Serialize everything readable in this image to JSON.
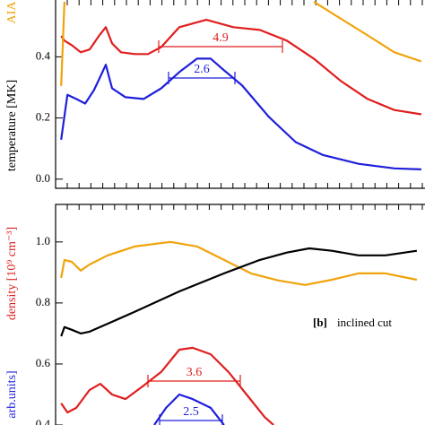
{
  "chart_data": [
    {
      "type": "line",
      "ylabel": "temperature [MK]",
      "y2label": "AIA",
      "y2label_color": "#f0a30a",
      "xlim": [
        0,
        100
      ],
      "ylim": [
        -0.03,
        0.58
      ],
      "yticks": [
        {
          "value": 0,
          "label": "0.0"
        },
        0.2,
        0.4
      ],
      "series": [
        {
          "name": "red",
          "color": "#e01e1e",
          "x": [
            1.5,
            2.4,
            4.4,
            6.8,
            9.2,
            11.7,
            13.6,
            15.3,
            17.7,
            21.4,
            25,
            28.6,
            33.5,
            40.8,
            48.1,
            55.3,
            62.6,
            69.9,
            77.2,
            84.5,
            91.7,
            99
          ],
          "values": [
            0.468,
            0.453,
            0.438,
            0.415,
            0.424,
            0.468,
            0.497,
            0.444,
            0.415,
            0.409,
            0.409,
            0.432,
            0.497,
            0.521,
            0.497,
            0.488,
            0.453,
            0.394,
            0.321,
            0.262,
            0.226,
            0.212
          ]
        },
        {
          "name": "blue",
          "color": "#1f1fdc",
          "x": [
            1.5,
            3.2,
            5.6,
            8,
            10.4,
            12.1,
            13.6,
            15.3,
            18.9,
            23.8,
            28.6,
            33.5,
            38.3,
            42,
            45.6,
            50.5,
            57.8,
            65,
            72.3,
            82,
            91.7,
            99
          ],
          "values": [
            0.129,
            0.276,
            0.262,
            0.247,
            0.291,
            0.335,
            0.374,
            0.297,
            0.268,
            0.262,
            0.297,
            0.35,
            0.394,
            0.394,
            0.356,
            0.306,
            0.203,
            0.121,
            0.079,
            0.05,
            0.035,
            0.032
          ]
        },
        {
          "name": "orange",
          "color": "#f0a30a",
          "x": [
            1.5,
            2.4,
            3.4,
            69.9,
            77.2,
            84.5,
            91.7,
            99
          ],
          "values": [
            0.305,
            0.58,
            null,
            0.58,
            0.525,
            0.47,
            0.415,
            0.385
          ]
        }
      ],
      "annotations": [
        {
          "text": "4.9",
          "color": "#e01e1e"
        },
        {
          "text": "2.6",
          "color": "#1f1fdc"
        }
      ]
    },
    {
      "type": "line",
      "ylabel": "density [10⁹ cm⁻³]",
      "ylabel_color": "#e01e1e",
      "y2label": "arb.units]",
      "y2label_color": "#1f1fdc",
      "panel_label": "[b]",
      "subtitle": "inclined cut",
      "xlim": [
        0,
        100
      ],
      "ylim": [
        0.4,
        1.12
      ],
      "yticks": [
        {
          "value": 1,
          "label": "1.0"
        },
        0.8,
        0.6,
        0.4
      ],
      "series": [
        {
          "name": "orange",
          "color": "#f0a30a",
          "x": [
            1.5,
            2.4,
            4.4,
            6.8,
            9.2,
            14.1,
            21.4,
            31.1,
            38.3,
            45.6,
            52.9,
            60.2,
            67.5,
            74.8,
            82,
            89.3,
            97.8
          ],
          "values": [
            0.882,
            0.941,
            0.935,
            0.906,
            0.926,
            0.956,
            0.985,
            1.0,
            0.985,
            0.941,
            0.897,
            0.874,
            0.859,
            0.876,
            0.897,
            0.897,
            0.876
          ]
        },
        {
          "name": "black",
          "color": "#000000",
          "x": [
            1.5,
            2.4,
            4.4,
            6.8,
            9.2,
            21.4,
            33.5,
            45.6,
            55.3,
            62.6,
            68.7,
            74.8,
            82,
            89.3,
            97.8
          ],
          "values": [
            0.691,
            0.721,
            0.712,
            0.7,
            0.706,
            0.771,
            0.838,
            0.897,
            0.941,
            0.965,
            0.979,
            0.971,
            0.956,
            0.956,
            0.971
          ]
        },
        {
          "name": "red",
          "color": "#e01e1e",
          "x": [
            1.5,
            3.2,
            5.6,
            9.2,
            12.1,
            15.3,
            18.9,
            23.8,
            28.6,
            33.5,
            37.1,
            42,
            46.8,
            51.7,
            56.6,
            59
          ],
          "values": [
            0.471,
            0.441,
            0.456,
            0.515,
            0.535,
            0.5,
            0.485,
            0.529,
            0.574,
            0.647,
            0.653,
            0.632,
            0.574,
            0.5,
            0.426,
            0.4
          ]
        },
        {
          "name": "blue",
          "color": "#1f1fdc",
          "x": [
            26.7,
            29.9,
            33.5,
            37.1,
            42,
            45.6
          ],
          "values": [
            0.4,
            0.456,
            0.5,
            0.485,
            0.456,
            0.4
          ]
        }
      ],
      "annotations": [
        {
          "text": "3.6",
          "color": "#e01e1e"
        },
        {
          "text": "2.5",
          "color": "#1f1fdc"
        }
      ]
    }
  ]
}
